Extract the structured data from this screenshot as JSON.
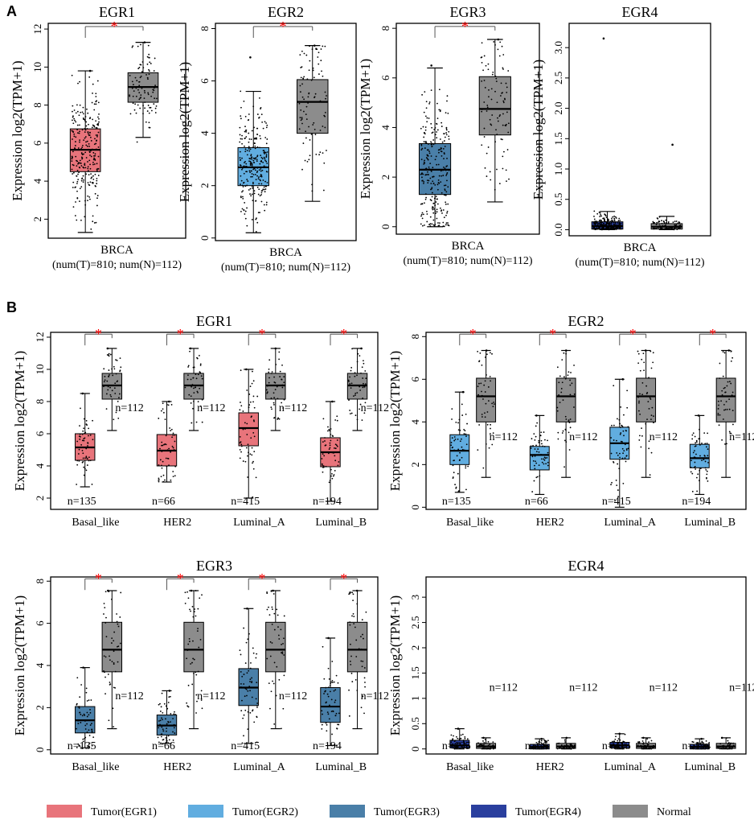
{
  "panel_labels": [
    "A",
    "B"
  ],
  "colors": {
    "tumor_egr1": "#e8747b",
    "tumor_egr2": "#61ade0",
    "tumor_egr3": "#4a7fa8",
    "tumor_egr4": "#2a3f9e",
    "normal": "#8c8c8c",
    "star": "#ff0000"
  },
  "legend": [
    {
      "label": "Tumor(EGR1)",
      "color": "#e8747b"
    },
    {
      "label": "Tumor(EGR2)",
      "color": "#61ade0"
    },
    {
      "label": "Tumor(EGR3)",
      "color": "#4a7fa8"
    },
    {
      "label": "Tumor(EGR4)",
      "color": "#2a3f9e"
    },
    {
      "label": "Normal",
      "color": "#8c8c8c"
    }
  ],
  "chart_data": [
    {
      "panel": "A",
      "type": "box",
      "title": "EGR1",
      "ylabel": "Expression log2(TPM+1)",
      "xlabel": "BRCA",
      "subtitle": "(num(T)=810; num(N)=112)",
      "ylim": [
        1,
        12.3
      ],
      "yticks": [
        2,
        4,
        6,
        8,
        10,
        12
      ],
      "tumor_color": "#e8747b",
      "significant": true,
      "tumor": {
        "min": 1.3,
        "q1": 4.5,
        "median": 5.65,
        "q3": 6.75,
        "max": 9.8,
        "outlier_min": 1.3,
        "outlier_max": 9.8,
        "n": 810
      },
      "normal": {
        "min": 6.3,
        "q1": 8.15,
        "median": 8.95,
        "q3": 9.7,
        "max": 11.3,
        "outlier_min": 4.4,
        "outlier_max": 11.3,
        "n": 112
      }
    },
    {
      "panel": "A",
      "type": "box",
      "title": "EGR2",
      "ylabel": "Expression log2(TPM+1)",
      "xlabel": "BRCA",
      "subtitle": "(num(T)=810; num(N)=112)",
      "ylim": [
        -0.1,
        8.2
      ],
      "yticks": [
        0,
        2,
        4,
        6,
        8
      ],
      "tumor_color": "#61ade0",
      "significant": true,
      "tumor": {
        "min": 0.2,
        "q1": 2.0,
        "median": 2.7,
        "q3": 3.45,
        "max": 5.6,
        "outlier_min": 0.0,
        "outlier_max": 6.9,
        "n": 810
      },
      "normal": {
        "min": 1.4,
        "q1": 4.0,
        "median": 5.2,
        "q3": 6.05,
        "max": 7.35,
        "outlier_min": 0.0,
        "outlier_max": 7.35,
        "n": 112
      }
    },
    {
      "panel": "A",
      "type": "box",
      "title": "EGR3",
      "ylabel": "Expression log2(TPM+1)",
      "xlabel": "BRCA",
      "subtitle": "(num(T)=810; num(N)=112)",
      "ylim": [
        -0.3,
        8.2
      ],
      "yticks": [
        0,
        2,
        4,
        6,
        8
      ],
      "tumor_color": "#4a7fa8",
      "significant": true,
      "tumor": {
        "min": 0.0,
        "q1": 1.3,
        "median": 2.3,
        "q3": 3.35,
        "max": 6.4,
        "outlier_min": 0.0,
        "outlier_max": 6.5,
        "n": 810
      },
      "normal": {
        "min": 1.0,
        "q1": 3.7,
        "median": 4.75,
        "q3": 6.05,
        "max": 7.55,
        "outlier_min": 0.0,
        "outlier_max": 7.55,
        "n": 112
      }
    },
    {
      "panel": "A",
      "type": "box",
      "title": "EGR4",
      "ylabel": "Expression log2(TPM+1)",
      "xlabel": "BRCA",
      "subtitle": "(num(T)=810; num(N)=112)",
      "ylim": [
        -0.1,
        3.4
      ],
      "yticks": [
        0.0,
        0.5,
        1.0,
        1.5,
        2.0,
        2.5,
        3.0
      ],
      "tumor_color": "#2a3f9e",
      "significant": false,
      "tumor": {
        "min": 0.0,
        "q1": 0.01,
        "median": 0.06,
        "q3": 0.13,
        "max": 0.3,
        "outlier_min": 0.0,
        "outlier_max": 3.15,
        "n": 810
      },
      "normal": {
        "min": 0.0,
        "q1": 0.01,
        "median": 0.05,
        "q3": 0.1,
        "max": 0.22,
        "outlier_min": 0.0,
        "outlier_max": 1.4,
        "n": 112
      }
    },
    {
      "panel": "B",
      "type": "box",
      "title": "EGR1",
      "ylabel": "Expression log2(TPM+1)",
      "categories": [
        "Basal_like",
        "HER2",
        "Luminal_A",
        "Luminal_B"
      ],
      "tumor_n": [
        "n=135",
        "n=66",
        "n=415",
        "n=194"
      ],
      "normal_n": "n=112",
      "ylim": [
        1.3,
        12.3
      ],
      "yticks": [
        2,
        4,
        6,
        8,
        10,
        12
      ],
      "tumor_color": "#e8747b",
      "significant": [
        true,
        true,
        true,
        true
      ],
      "tumor": [
        {
          "min": 2.7,
          "q1": 4.35,
          "median": 5.15,
          "q3": 6.0,
          "max": 8.5
        },
        {
          "min": 3.0,
          "q1": 4.0,
          "median": 4.95,
          "q3": 5.95,
          "max": 8.0
        },
        {
          "min": 2.0,
          "q1": 5.25,
          "median": 6.35,
          "q3": 7.3,
          "max": 10.0
        },
        {
          "min": 1.8,
          "q1": 3.95,
          "median": 4.85,
          "q3": 5.75,
          "max": 8.0
        }
      ],
      "normal": {
        "min": 6.2,
        "q1": 8.15,
        "median": 9.0,
        "q3": 9.75,
        "max": 11.3
      }
    },
    {
      "panel": "B",
      "type": "box",
      "title": "EGR2",
      "ylabel": "Expression log2(TPM+1)",
      "categories": [
        "Basal_like",
        "HER2",
        "Luminal_A",
        "Luminal_B"
      ],
      "tumor_n": [
        "n=135",
        "n=66",
        "n=415",
        "n=194"
      ],
      "normal_n": "n=112",
      "ylim": [
        -0.1,
        8.2
      ],
      "yticks": [
        0,
        2,
        4,
        6,
        8
      ],
      "tumor_color": "#61ade0",
      "significant": [
        true,
        true,
        true,
        true
      ],
      "tumor": [
        {
          "min": 0.7,
          "q1": 2.0,
          "median": 2.65,
          "q3": 3.4,
          "max": 5.4
        },
        {
          "min": 0.6,
          "q1": 1.75,
          "median": 2.45,
          "q3": 2.85,
          "max": 4.3
        },
        {
          "min": 0.0,
          "q1": 2.25,
          "median": 3.0,
          "q3": 3.75,
          "max": 6.0
        },
        {
          "min": 0.6,
          "q1": 1.85,
          "median": 2.3,
          "q3": 2.95,
          "max": 4.3
        }
      ],
      "normal": {
        "min": 1.4,
        "q1": 4.0,
        "median": 5.2,
        "q3": 6.05,
        "max": 7.35
      }
    },
    {
      "panel": "B",
      "type": "box",
      "title": "EGR3",
      "ylabel": "Expression log2(TPM+1)",
      "categories": [
        "Basal_like",
        "HER2",
        "Luminal_A",
        "Luminal_B"
      ],
      "tumor_n": [
        "n=135",
        "n=66",
        "n=415",
        "n=194"
      ],
      "normal_n": "n=112",
      "ylim": [
        -0.2,
        8.2
      ],
      "yticks": [
        0,
        2,
        4,
        6,
        8
      ],
      "tumor_color": "#4a7fa8",
      "significant": [
        true,
        true,
        true,
        true
      ],
      "tumor": [
        {
          "min": 0.1,
          "q1": 0.8,
          "median": 1.4,
          "q3": 2.05,
          "max": 3.9
        },
        {
          "min": 0.3,
          "q1": 0.7,
          "median": 1.15,
          "q3": 1.65,
          "max": 2.8
        },
        {
          "min": 0.3,
          "q1": 2.1,
          "median": 2.95,
          "q3": 3.85,
          "max": 6.7
        },
        {
          "min": 0.2,
          "q1": 1.3,
          "median": 2.05,
          "q3": 2.95,
          "max": 5.3
        }
      ],
      "normal": {
        "min": 1.0,
        "q1": 3.7,
        "median": 4.75,
        "q3": 6.05,
        "max": 7.55
      }
    },
    {
      "panel": "B",
      "type": "box",
      "title": "EGR4",
      "ylabel": "Expression log2(TPM+1)",
      "categories": [
        "Basal_like",
        "HER2",
        "Luminal_A",
        "Luminal_B"
      ],
      "tumor_n": [
        "n=135",
        "n=66",
        "n=415",
        "n=194"
      ],
      "normal_n": "n=112",
      "ylim": [
        -0.1,
        3.4
      ],
      "yticks": [
        0,
        0.5,
        1,
        1.5,
        2,
        2.5,
        3
      ],
      "tumor_color": "#2a3f9e",
      "significant": [
        false,
        false,
        false,
        false
      ],
      "tumor": [
        {
          "min": 0.0,
          "q1": 0.02,
          "median": 0.07,
          "q3": 0.17,
          "max": 0.4
        },
        {
          "min": 0.0,
          "q1": 0.0,
          "median": 0.04,
          "q3": 0.09,
          "max": 0.2
        },
        {
          "min": 0.0,
          "q1": 0.02,
          "median": 0.07,
          "q3": 0.13,
          "max": 0.3
        },
        {
          "min": 0.0,
          "q1": 0.0,
          "median": 0.04,
          "q3": 0.09,
          "max": 0.2
        }
      ],
      "normal": {
        "min": 0.0,
        "q1": 0.01,
        "median": 0.05,
        "q3": 0.11,
        "max": 0.22
      }
    }
  ]
}
